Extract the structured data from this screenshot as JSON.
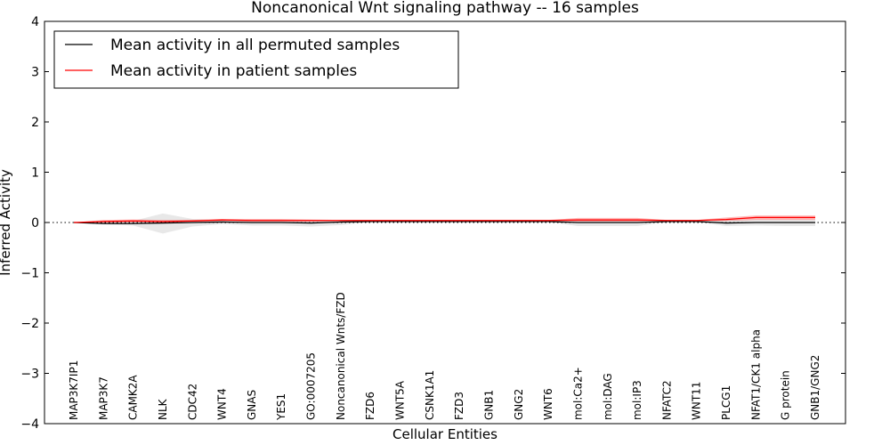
{
  "chart_data": {
    "type": "line",
    "title": "Noncanonical Wnt signaling pathway -- 16 samples",
    "xlabel": "Cellular Entities",
    "ylabel": "Inferred Activity",
    "ylim": [
      -4,
      4
    ],
    "yticks": [
      -4,
      -3,
      -2,
      -1,
      0,
      1,
      2,
      3,
      4
    ],
    "ytick_labels": [
      "−4",
      "−3",
      "−2",
      "−1",
      "0",
      "1",
      "2",
      "3",
      "4"
    ],
    "grid": false,
    "legend_position": "top-left",
    "categories": [
      "MAP3K7IP1",
      "MAP3K7",
      "CAMK2A",
      "NLK",
      "CDC42",
      "WNT4",
      "GNAS",
      "YES1",
      "GO:0007205",
      "Noncanonical Wnts/FZD",
      "FZD6",
      "WNT5A",
      "CSNK1A1",
      "FZD3",
      "GNB1",
      "GNG2",
      "WNT6",
      "mol:Ca2+",
      "mol:DAG",
      "mol:IP3",
      "NFATC2",
      "WNT11",
      "PLCG1",
      "NFAT1/CK1 alpha",
      "G protein",
      "GNB1/GNG2"
    ],
    "series": [
      {
        "name": "Mean activity in all permuted samples",
        "color": "#000000",
        "values": [
          0.0,
          -0.02,
          -0.02,
          -0.01,
          0.0,
          0.01,
          0.0,
          0.0,
          -0.01,
          0.01,
          0.02,
          0.02,
          0.02,
          0.02,
          0.02,
          0.02,
          0.02,
          0.0,
          0.0,
          0.0,
          0.02,
          0.02,
          -0.01,
          0.0,
          0.0,
          0.0
        ],
        "band_lower": [
          0.0,
          -0.04,
          -0.06,
          -0.22,
          -0.08,
          -0.03,
          -0.06,
          -0.06,
          -0.08,
          -0.05,
          0.01,
          0.01,
          0.01,
          0.01,
          0.01,
          0.01,
          0.01,
          -0.07,
          -0.07,
          -0.07,
          0.01,
          0.01,
          -0.07,
          -0.06,
          -0.07,
          -0.07
        ],
        "band_upper": [
          0.0,
          0.01,
          0.03,
          0.18,
          0.07,
          0.05,
          0.04,
          0.04,
          0.04,
          0.05,
          0.03,
          0.03,
          0.03,
          0.03,
          0.03,
          0.03,
          0.03,
          0.05,
          0.05,
          0.05,
          0.03,
          0.03,
          0.05,
          0.06,
          0.06,
          0.06
        ]
      },
      {
        "name": "Mean activity in patient samples",
        "color": "#ff0000",
        "values": [
          0.0,
          0.02,
          0.03,
          0.02,
          0.03,
          0.05,
          0.04,
          0.04,
          0.04,
          0.04,
          0.04,
          0.04,
          0.04,
          0.04,
          0.04,
          0.04,
          0.04,
          0.05,
          0.05,
          0.05,
          0.04,
          0.04,
          0.06,
          0.1,
          0.1,
          0.1
        ],
        "band_lower": [
          0.0,
          0.0,
          0.01,
          0.0,
          0.02,
          0.03,
          0.02,
          0.02,
          0.02,
          0.03,
          0.03,
          0.03,
          0.03,
          0.03,
          0.03,
          0.03,
          0.03,
          0.02,
          0.02,
          0.02,
          0.03,
          0.03,
          0.03,
          0.05,
          0.05,
          0.05
        ],
        "band_upper": [
          0.0,
          0.05,
          0.06,
          0.05,
          0.05,
          0.07,
          0.07,
          0.07,
          0.06,
          0.05,
          0.05,
          0.05,
          0.05,
          0.05,
          0.05,
          0.05,
          0.05,
          0.09,
          0.09,
          0.09,
          0.05,
          0.05,
          0.1,
          0.14,
          0.14,
          0.14
        ]
      }
    ],
    "reference_line": 0
  }
}
